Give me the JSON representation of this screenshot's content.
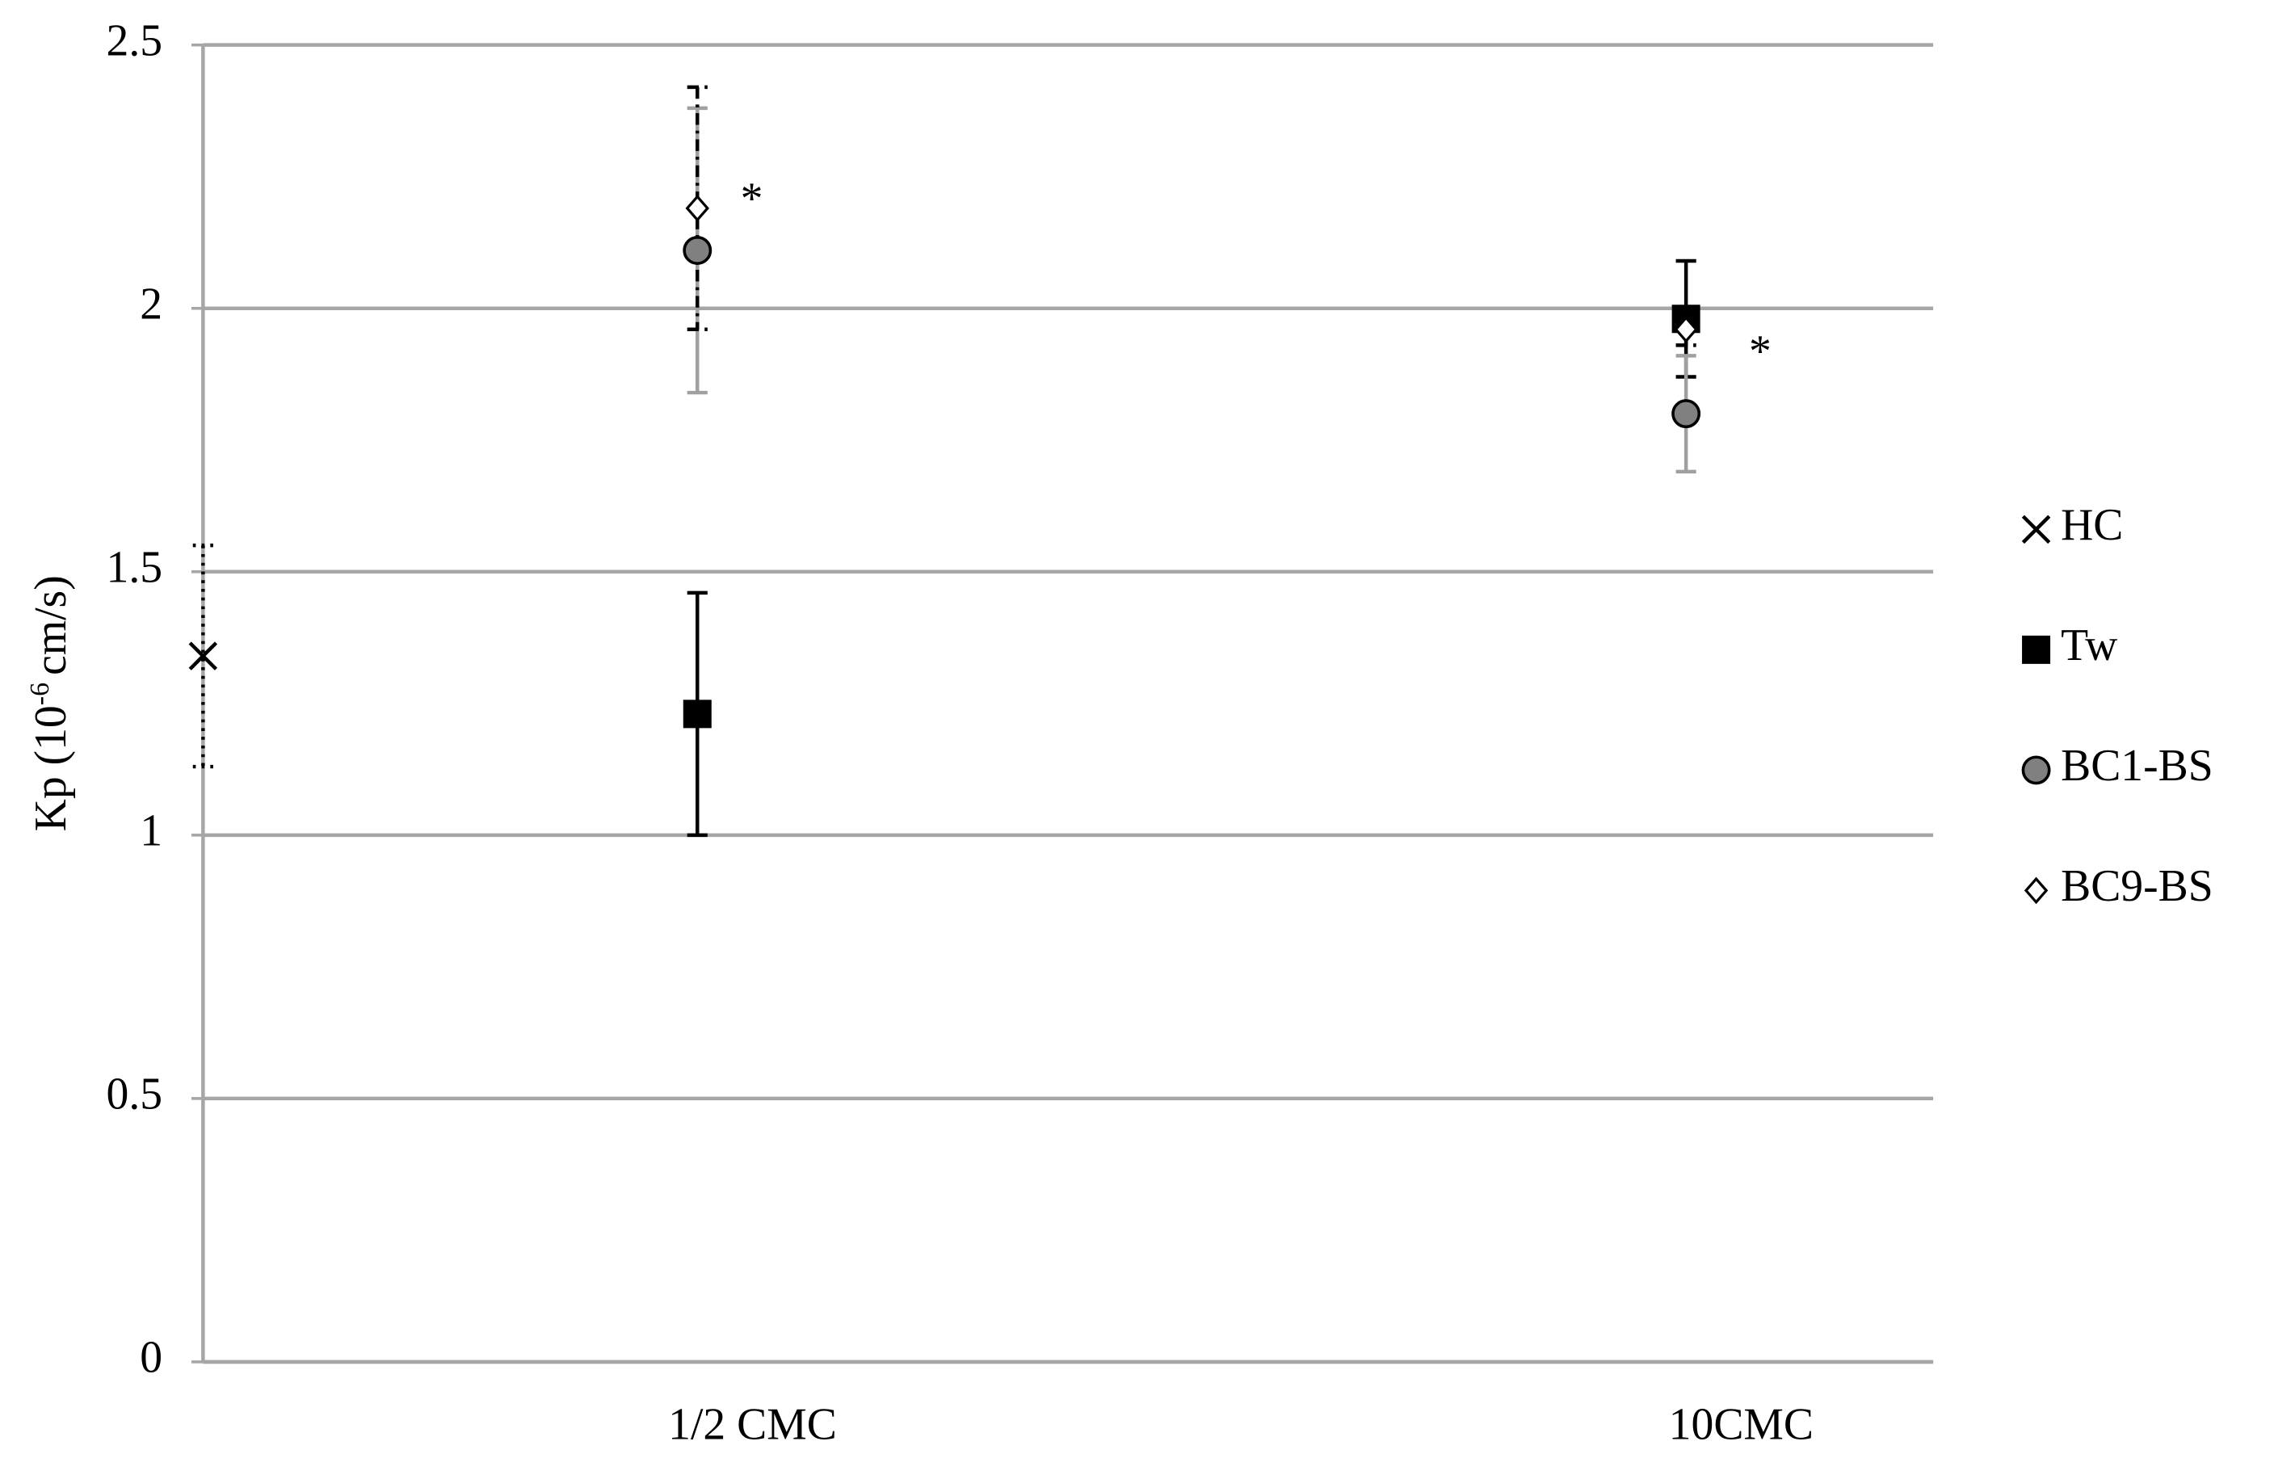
{
  "chart_data": {
    "type": "scatter",
    "y_label": {
      "text": "Kp (10",
      "superscript": "-6",
      "unit": "cm/s)"
    },
    "xlim": [
      0,
      3.5
    ],
    "xticks": [
      {
        "value": 1,
        "label": "1/2 CMC"
      },
      {
        "value": 3,
        "label": "10CMC"
      }
    ],
    "ylim": [
      0,
      2.5
    ],
    "yticks": [
      0,
      0.5,
      1,
      1.5,
      2,
      2.5
    ],
    "grid": true,
    "legend": "right",
    "series": [
      {
        "name": "HC",
        "marker": "x",
        "color": "#000000",
        "error_color": "#000000",
        "error_style": "dotted",
        "x": [
          0
        ],
        "values": [
          1.34
        ],
        "errors": [
          0.21
        ]
      },
      {
        "name": "Tw",
        "marker": "square",
        "color": "#000000",
        "error_color": "#000000",
        "error_style": "solid",
        "x": [
          1,
          3
        ],
        "values": [
          1.23,
          1.98
        ],
        "errors": [
          0.23,
          0.11
        ]
      },
      {
        "name": "BC1-BS",
        "marker": "circle",
        "color": "#808080",
        "error_color": "#a0a0a0",
        "error_style": "solid",
        "x": [
          1,
          3
        ],
        "values": [
          2.11,
          1.8
        ],
        "errors": [
          0.27,
          0.11
        ]
      },
      {
        "name": "BC9-BS",
        "marker": "diamond",
        "color": "#ffffff",
        "error_color": "#000000",
        "error_style": "dashdot",
        "x": [
          1,
          3
        ],
        "values": [
          2.19,
          1.96
        ],
        "errors": [
          0.23,
          0.03
        ]
      }
    ],
    "annotations": [
      {
        "text": "*",
        "x": 1.11,
        "y": 2.2
      },
      {
        "text": "*",
        "x": 3.15,
        "y": 1.91
      }
    ]
  }
}
